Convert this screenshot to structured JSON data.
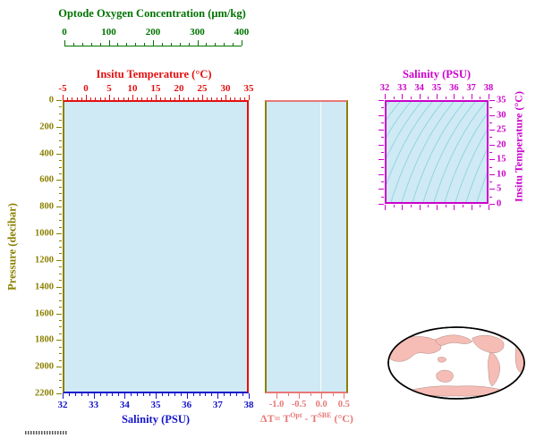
{
  "colors": {
    "oxygen_green": "#007300",
    "temp_red": "#e41010",
    "pressure_olive": "#8a8000",
    "salinity_blue": "#1515cc",
    "magenta": "#cc00cc",
    "delta_pink": "#e87878",
    "plot_fill": "#cfeaf4",
    "contour_cyan": "#8ed2e2",
    "map_land": "#f5bdb5"
  },
  "oxygen_axis": {
    "title": "Optode Oxygen Concentration (μm/kg)",
    "ticks": [
      "0",
      "100",
      "200",
      "300",
      "400"
    ]
  },
  "temperature_axis": {
    "title": "Insitu Temperature (°C)",
    "ticks": [
      "-5",
      "0",
      "5",
      "10",
      "15",
      "20",
      "25",
      "30",
      "35"
    ]
  },
  "pressure_axis": {
    "title": "Pressure (decibar)",
    "ticks": [
      "0",
      "200",
      "400",
      "600",
      "800",
      "1000",
      "1200",
      "1400",
      "1600",
      "1800",
      "2000",
      "2200"
    ]
  },
  "salinity_axis": {
    "title": "Salinity (PSU)",
    "ticks": [
      "32",
      "33",
      "34",
      "35",
      "36",
      "37",
      "38"
    ]
  },
  "delta_t_axis": {
    "title_parts": {
      "p1": "ΔT= T",
      "s1": "Opt",
      "p2": " - T",
      "s2": "SBE",
      "p3": " (°C)"
    },
    "ticks": [
      "-1.0",
      "-0.5",
      "0.0",
      "0.5"
    ]
  },
  "ts_diagram": {
    "salinity_title": "Salinity (PSU)",
    "salinity_ticks": [
      "32",
      "33",
      "34",
      "35",
      "36",
      "37",
      "38"
    ],
    "temperature_title": "Insitu Temperature (°C)",
    "temperature_ticks": [
      "35",
      "30",
      "25",
      "20",
      "15",
      "10",
      "5",
      "0"
    ]
  },
  "chart_data": [
    {
      "id": "profile_plot",
      "type": "line",
      "series": [],
      "axes": {
        "x_bottom_salinity": {
          "label": "Salinity (PSU)",
          "range": [
            32,
            38
          ],
          "ticks": [
            32,
            33,
            34,
            35,
            36,
            37,
            38
          ],
          "color": "#1515cc"
        },
        "x_top_temperature": {
          "label": "Insitu Temperature (°C)",
          "range": [
            -5,
            35
          ],
          "ticks": [
            -5,
            0,
            5,
            10,
            15,
            20,
            25,
            30,
            35
          ],
          "color": "#e41010"
        },
        "x_top_oxygen": {
          "label": "Optode Oxygen Concentration (μm/kg)",
          "range": [
            0,
            400
          ],
          "ticks": [
            0,
            100,
            200,
            300,
            400
          ],
          "color": "#007300"
        },
        "y_left_pressure": {
          "label": "Pressure (decibar)",
          "range": [
            0,
            2200
          ],
          "direction": "increasing-downward",
          "ticks": [
            0,
            200,
            400,
            600,
            800,
            1000,
            1200,
            1400,
            1600,
            1800,
            2000,
            2200
          ],
          "color": "#8a8000"
        }
      }
    },
    {
      "id": "delta_t_plot",
      "type": "line",
      "series": [],
      "axes": {
        "x_bottom_delta_t": {
          "label": "ΔT= T Opt - T SBE (°C)",
          "ticks": [
            -1.0,
            -0.5,
            0.0,
            0.5
          ],
          "color": "#e87878"
        },
        "y_left_pressure": {
          "label": "Pressure (decibar)",
          "range": [
            0,
            2200
          ],
          "direction": "increasing-downward"
        }
      }
    },
    {
      "id": "ts_diagram",
      "type": "line",
      "series": [],
      "background_contours": "isopycnal-density-contours",
      "axes": {
        "x_top_salinity": {
          "label": "Salinity (PSU)",
          "range": [
            32,
            38
          ],
          "ticks": [
            32,
            33,
            34,
            35,
            36,
            37,
            38
          ],
          "color": "#cc00cc"
        },
        "y_right_temperature": {
          "label": "Insitu Temperature (°C)",
          "range": [
            0,
            35
          ],
          "ticks": [
            0,
            5,
            10,
            15,
            20,
            25,
            30,
            35
          ],
          "color": "#cc00cc"
        }
      }
    }
  ]
}
